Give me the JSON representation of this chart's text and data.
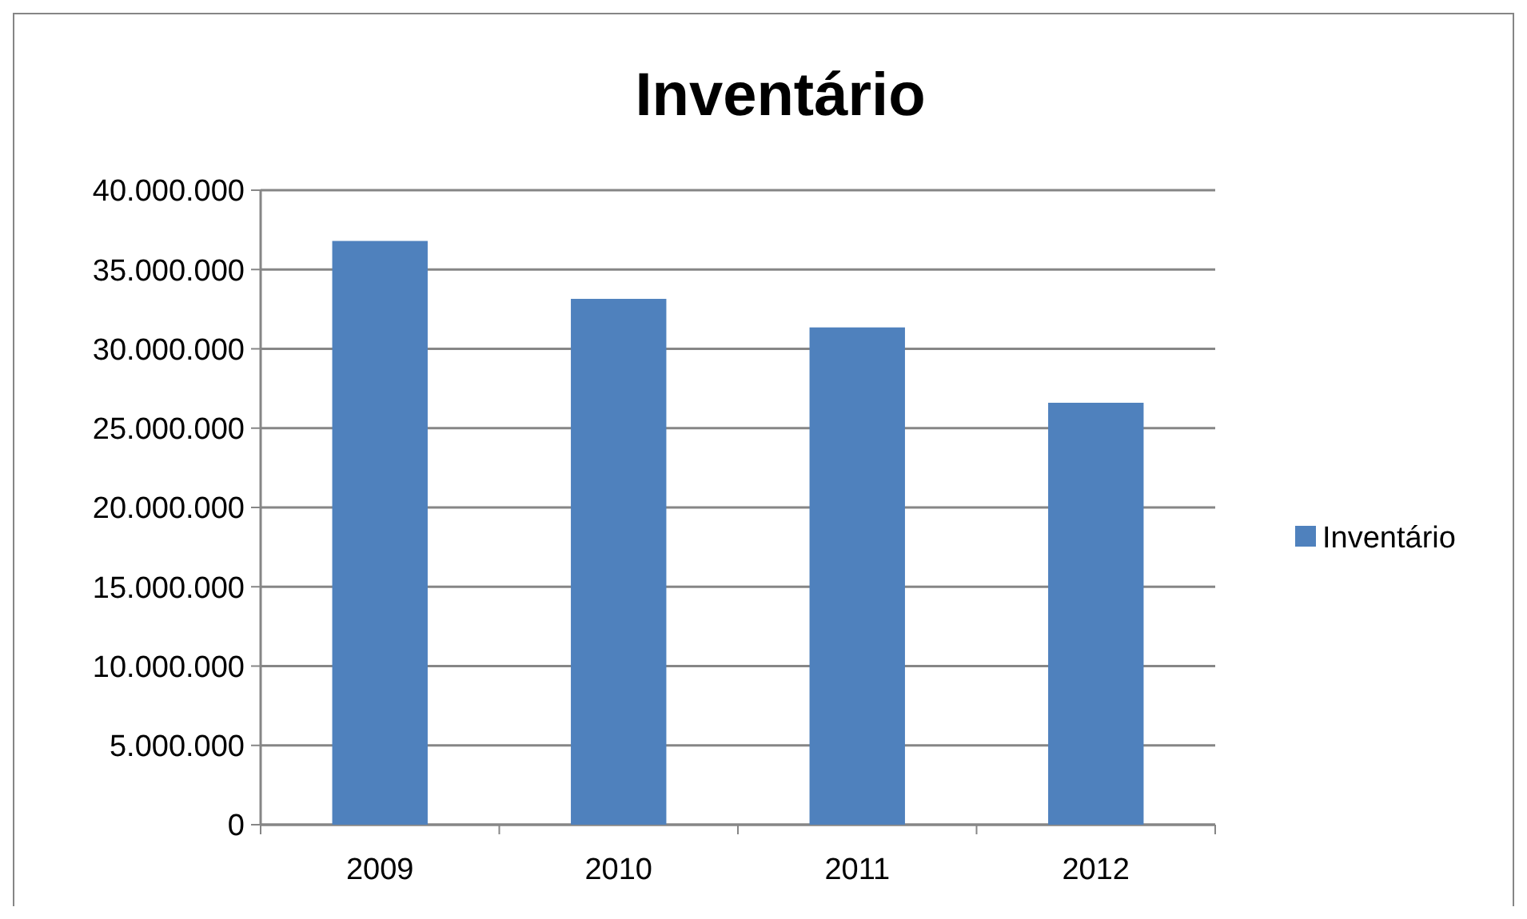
{
  "chart_data": {
    "type": "bar",
    "title": "Inventário",
    "categories": [
      "2009",
      "2010",
      "2011",
      "2012"
    ],
    "series": [
      {
        "name": "Inventário",
        "color": "#4f81bd",
        "values": [
          36800000,
          33150000,
          31350000,
          26600000
        ]
      }
    ],
    "ylim": [
      0,
      40000000
    ],
    "yticks": [
      0,
      {
        "value": 5000000,
        "label": "5.000.000"
      },
      {
        "value": 10000000,
        "label": "10.000.000"
      },
      {
        "value": 15000000,
        "label": "15.000.000"
      },
      {
        "value": 20000000,
        "label": "20.000.000"
      },
      {
        "value": 25000000,
        "label": "25.000.000"
      },
      {
        "value": 30000000,
        "label": "30.000.000"
      },
      {
        "value": 35000000,
        "label": "35.000.000"
      },
      {
        "value": 40000000,
        "label": "40.000.000"
      }
    ],
    "grid": "y",
    "legend": "right"
  }
}
